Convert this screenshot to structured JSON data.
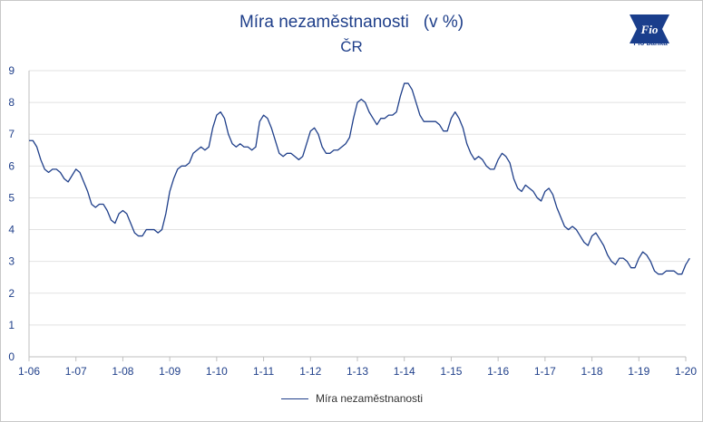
{
  "brand": {
    "logo_text": "Fio banka",
    "logo_mark": "Fio",
    "color": "#1a3e8c"
  },
  "chart_data": {
    "type": "line",
    "title": "Míra nezaměstnanosti   (v %)",
    "subtitle": "ČR",
    "xlabel": "",
    "ylabel": "",
    "x_ticks": [
      "1-06",
      "1-07",
      "1-08",
      "1-09",
      "1-10",
      "1-11",
      "1-12",
      "1-13",
      "1-14",
      "1-15",
      "1-16",
      "1-17",
      "1-18",
      "1-19",
      "1-20"
    ],
    "y_ticks": [
      0,
      1,
      2,
      3,
      4,
      5,
      6,
      7,
      8,
      9
    ],
    "ylim": [
      0,
      9
    ],
    "grid": true,
    "legend_position": "bottom",
    "series": [
      {
        "name": "Míra nezaměstnanosti",
        "color": "#1f3f8a",
        "start": "2006-01",
        "frequency": "monthly",
        "values": [
          6.8,
          6.8,
          6.6,
          6.2,
          5.9,
          5.8,
          5.9,
          5.9,
          5.8,
          5.6,
          5.5,
          5.7,
          5.9,
          5.8,
          5.5,
          5.2,
          4.8,
          4.7,
          4.8,
          4.8,
          4.6,
          4.3,
          4.2,
          4.5,
          4.6,
          4.5,
          4.2,
          3.9,
          3.8,
          3.8,
          4.0,
          4.0,
          4.0,
          3.9,
          4.0,
          4.5,
          5.2,
          5.6,
          5.9,
          6.0,
          6.0,
          6.1,
          6.4,
          6.5,
          6.6,
          6.5,
          6.6,
          7.2,
          7.6,
          7.7,
          7.5,
          7.0,
          6.7,
          6.6,
          6.7,
          6.6,
          6.6,
          6.5,
          6.6,
          7.4,
          7.6,
          7.5,
          7.2,
          6.8,
          6.4,
          6.3,
          6.4,
          6.4,
          6.3,
          6.2,
          6.3,
          6.7,
          7.1,
          7.2,
          7.0,
          6.6,
          6.4,
          6.4,
          6.5,
          6.5,
          6.6,
          6.7,
          6.9,
          7.5,
          8.0,
          8.1,
          8.0,
          7.7,
          7.5,
          7.3,
          7.5,
          7.5,
          7.6,
          7.6,
          7.7,
          8.2,
          8.6,
          8.6,
          8.4,
          8.0,
          7.6,
          7.4,
          7.4,
          7.4,
          7.4,
          7.3,
          7.1,
          7.1,
          7.5,
          7.7,
          7.5,
          7.2,
          6.7,
          6.4,
          6.2,
          6.3,
          6.2,
          6.0,
          5.9,
          5.9,
          6.2,
          6.4,
          6.3,
          6.1,
          5.6,
          5.3,
          5.2,
          5.4,
          5.3,
          5.2,
          5.0,
          4.9,
          5.2,
          5.3,
          5.1,
          4.7,
          4.4,
          4.1,
          4.0,
          4.1,
          4.0,
          3.8,
          3.6,
          3.5,
          3.8,
          3.9,
          3.7,
          3.5,
          3.2,
          3.0,
          2.9,
          3.1,
          3.1,
          3.0,
          2.8,
          2.8,
          3.1,
          3.3,
          3.2,
          3.0,
          2.7,
          2.6,
          2.6,
          2.7,
          2.7,
          2.7,
          2.6,
          2.6,
          2.9,
          3.1
        ]
      }
    ]
  }
}
